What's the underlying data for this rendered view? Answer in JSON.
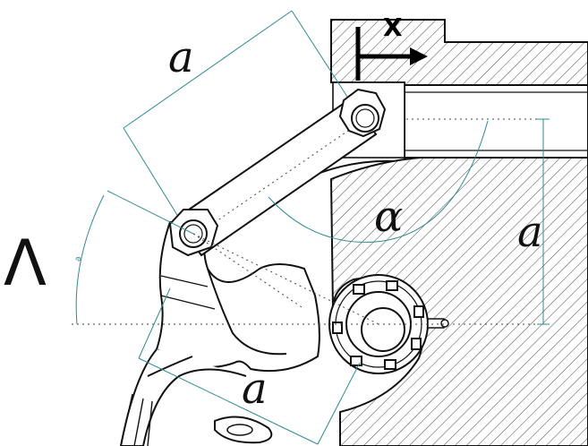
{
  "labels": {
    "a_top": "a",
    "a_right": "a",
    "a_bottom": "a",
    "alpha": "α",
    "lambda": "Λ",
    "x_axis": "X",
    "small_dim": "a"
  },
  "colors": {
    "dimension": "#2f8a8f",
    "outline": "#111111",
    "hatch": "#333333",
    "background": "#ffffff",
    "dotted": "#444444"
  }
}
